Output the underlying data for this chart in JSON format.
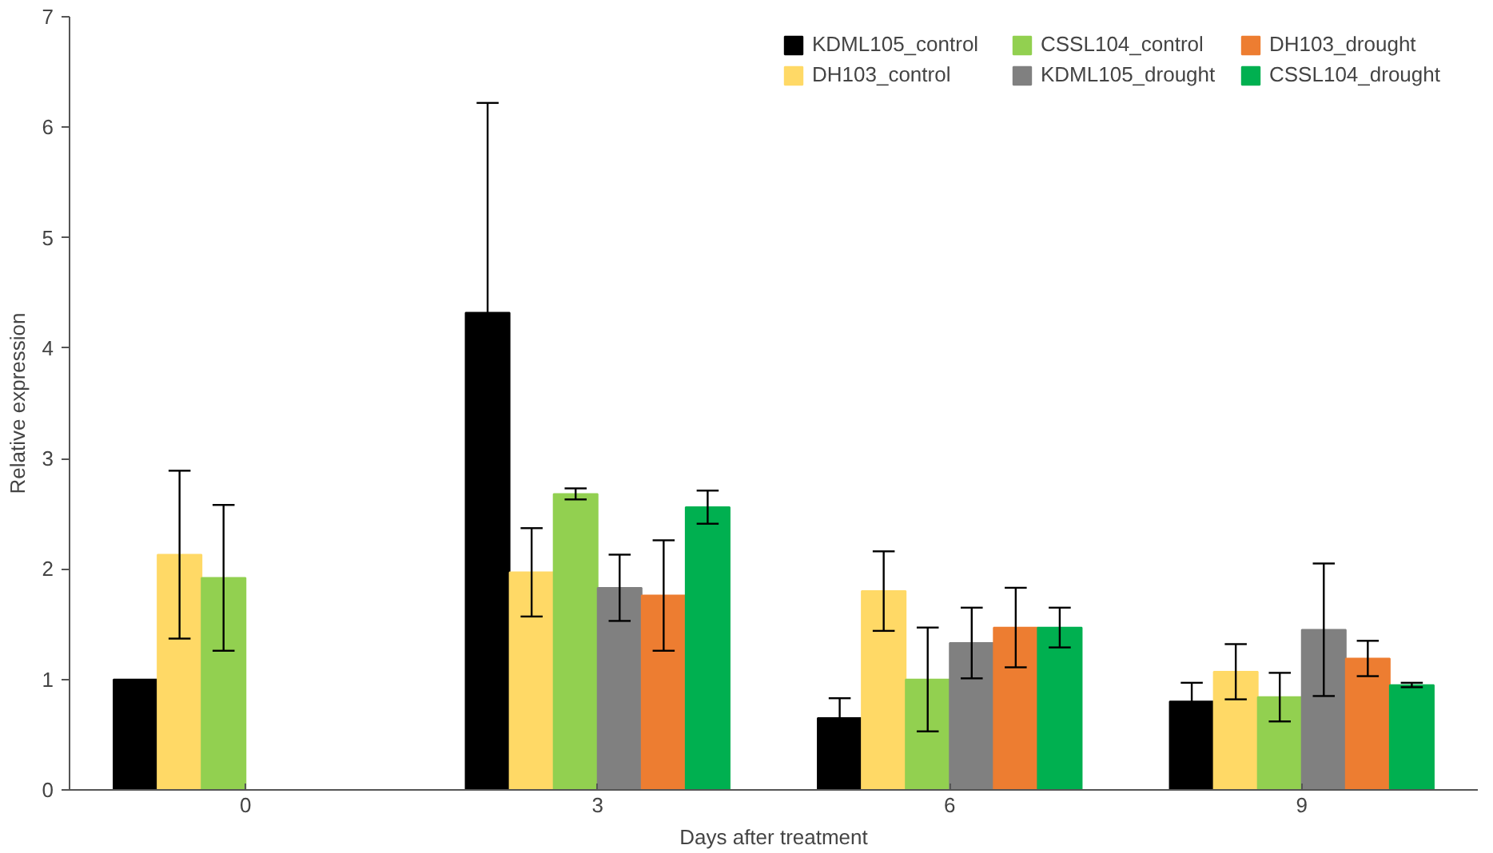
{
  "chart_data": {
    "type": "bar",
    "xlabel": "Days after treatment",
    "ylabel": "Relative expression",
    "categories": [
      "0",
      "3",
      "6",
      "9"
    ],
    "series": [
      {
        "name": "KDML105_control",
        "color": "#000000",
        "values": [
          1.0,
          4.32,
          0.65,
          0.8
        ],
        "errors": [
          null,
          1.9,
          0.18,
          0.17
        ]
      },
      {
        "name": "DH103_control",
        "color": "#ffd966",
        "values": [
          2.13,
          1.97,
          1.8,
          1.07
        ],
        "errors": [
          0.76,
          0.4,
          0.36,
          0.25
        ]
      },
      {
        "name": "CSSL104_control",
        "color": "#92d050",
        "values": [
          1.92,
          2.68,
          1.0,
          0.84
        ],
        "errors": [
          0.66,
          0.05,
          0.47,
          0.22
        ]
      },
      {
        "name": "KDML105_drought",
        "color": "#808080",
        "values": [
          null,
          1.83,
          1.33,
          1.45
        ],
        "errors": [
          null,
          0.3,
          0.32,
          0.6
        ]
      },
      {
        "name": "DH103_drought",
        "color": "#ed7d31",
        "values": [
          null,
          1.76,
          1.47,
          1.19
        ],
        "errors": [
          null,
          0.5,
          0.36,
          0.16
        ]
      },
      {
        "name": "CSSL104_drought",
        "color": "#00b050",
        "values": [
          null,
          2.56,
          1.47,
          0.95
        ],
        "errors": [
          null,
          0.15,
          0.18,
          0.02
        ]
      }
    ],
    "ylim": [
      0,
      7
    ],
    "yticks": [
      0,
      1,
      2,
      3,
      4,
      5,
      6,
      7
    ],
    "grid": false,
    "legend": "top right"
  }
}
